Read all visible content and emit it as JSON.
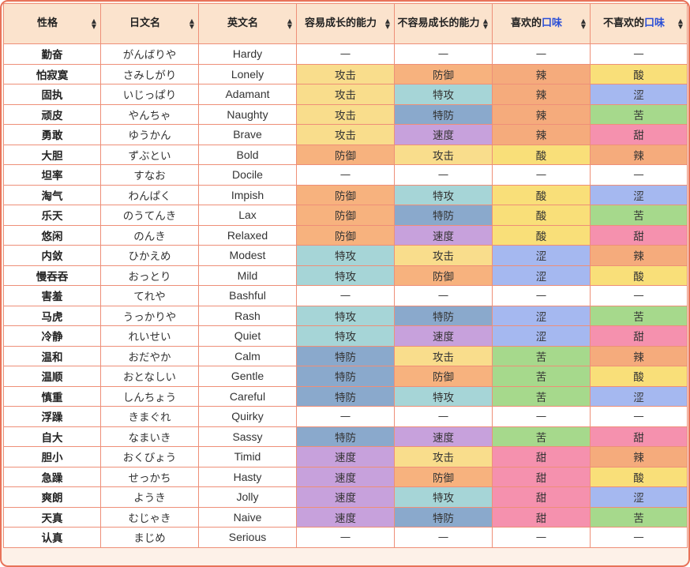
{
  "headers": [
    {
      "text": "性格",
      "pre": "",
      "hl": "",
      "post": ""
    },
    {
      "text": "日文名",
      "pre": "",
      "hl": "",
      "post": ""
    },
    {
      "text": "英文名",
      "pre": "",
      "hl": "",
      "post": ""
    },
    {
      "text": "容易成长的能力",
      "pre": "",
      "hl": "",
      "post": ""
    },
    {
      "text": "不容易成长的能力",
      "pre": "",
      "hl": "",
      "post": ""
    },
    {
      "text": "",
      "pre": "喜欢的",
      "hl": "口味",
      "post": ""
    },
    {
      "text": "",
      "pre": "不喜欢的",
      "hl": "口味",
      "post": ""
    }
  ],
  "stat_colors": {
    "攻击": "#f9dd8c",
    "防御": "#f7b27e",
    "特攻": "#a6d5d7",
    "特防": "#8aa9cc",
    "速度": "#c7a1dc"
  },
  "flavor_colors": {
    "辣": "#f5ab7c",
    "酸": "#f9df79",
    "涩": "#a5b8f0",
    "苦": "#a6d98c",
    "甜": "#f591ae"
  },
  "rows": [
    {
      "nature": "勤奋",
      "jp": "がんばりや",
      "en": "Hardy",
      "up": "—",
      "down": "—",
      "like": "—",
      "dislike": "—"
    },
    {
      "nature": "怕寂寞",
      "jp": "さみしがり",
      "en": "Lonely",
      "up": "攻击",
      "down": "防御",
      "like": "辣",
      "dislike": "酸"
    },
    {
      "nature": "固执",
      "jp": "いじっぱり",
      "en": "Adamant",
      "up": "攻击",
      "down": "特攻",
      "like": "辣",
      "dislike": "涩"
    },
    {
      "nature": "顽皮",
      "jp": "やんちゃ",
      "en": "Naughty",
      "up": "攻击",
      "down": "特防",
      "like": "辣",
      "dislike": "苦"
    },
    {
      "nature": "勇敢",
      "jp": "ゆうかん",
      "en": "Brave",
      "up": "攻击",
      "down": "速度",
      "like": "辣",
      "dislike": "甜"
    },
    {
      "nature": "大胆",
      "jp": "ずぶとい",
      "en": "Bold",
      "up": "防御",
      "down": "攻击",
      "like": "酸",
      "dislike": "辣"
    },
    {
      "nature": "坦率",
      "jp": "すなお",
      "en": "Docile",
      "up": "—",
      "down": "—",
      "like": "—",
      "dislike": "—"
    },
    {
      "nature": "淘气",
      "jp": "わんぱく",
      "en": "Impish",
      "up": "防御",
      "down": "特攻",
      "like": "酸",
      "dislike": "涩"
    },
    {
      "nature": "乐天",
      "jp": "のうてんき",
      "en": "Lax",
      "up": "防御",
      "down": "特防",
      "like": "酸",
      "dislike": "苦"
    },
    {
      "nature": "悠闲",
      "jp": "のんき",
      "en": "Relaxed",
      "up": "防御",
      "down": "速度",
      "like": "酸",
      "dislike": "甜"
    },
    {
      "nature": "内敛",
      "jp": "ひかえめ",
      "en": "Modest",
      "up": "特攻",
      "down": "攻击",
      "like": "涩",
      "dislike": "辣"
    },
    {
      "nature": "慢吞吞",
      "jp": "おっとり",
      "en": "Mild",
      "up": "特攻",
      "down": "防御",
      "like": "涩",
      "dislike": "酸"
    },
    {
      "nature": "害羞",
      "jp": "てれや",
      "en": "Bashful",
      "up": "—",
      "down": "—",
      "like": "—",
      "dislike": "—"
    },
    {
      "nature": "马虎",
      "jp": "うっかりや",
      "en": "Rash",
      "up": "特攻",
      "down": "特防",
      "like": "涩",
      "dislike": "苦"
    },
    {
      "nature": "冷静",
      "jp": "れいせい",
      "en": "Quiet",
      "up": "特攻",
      "down": "速度",
      "like": "涩",
      "dislike": "甜"
    },
    {
      "nature": "温和",
      "jp": "おだやか",
      "en": "Calm",
      "up": "特防",
      "down": "攻击",
      "like": "苦",
      "dislike": "辣"
    },
    {
      "nature": "温顺",
      "jp": "おとなしい",
      "en": "Gentle",
      "up": "特防",
      "down": "防御",
      "like": "苦",
      "dislike": "酸"
    },
    {
      "nature": "慎重",
      "jp": "しんちょう",
      "en": "Careful",
      "up": "特防",
      "down": "特攻",
      "like": "苦",
      "dislike": "涩"
    },
    {
      "nature": "浮躁",
      "jp": "きまぐれ",
      "en": "Quirky",
      "up": "—",
      "down": "—",
      "like": "—",
      "dislike": "—"
    },
    {
      "nature": "自大",
      "jp": "なまいき",
      "en": "Sassy",
      "up": "特防",
      "down": "速度",
      "like": "苦",
      "dislike": "甜"
    },
    {
      "nature": "胆小",
      "jp": "おくびょう",
      "en": "Timid",
      "up": "速度",
      "down": "攻击",
      "like": "甜",
      "dislike": "辣"
    },
    {
      "nature": "急躁",
      "jp": "せっかち",
      "en": "Hasty",
      "up": "速度",
      "down": "防御",
      "like": "甜",
      "dislike": "酸"
    },
    {
      "nature": "爽朗",
      "jp": "ようき",
      "en": "Jolly",
      "up": "速度",
      "down": "特攻",
      "like": "甜",
      "dislike": "涩"
    },
    {
      "nature": "天真",
      "jp": "むじゃき",
      "en": "Naive",
      "up": "速度",
      "down": "特防",
      "like": "甜",
      "dislike": "苦"
    },
    {
      "nature": "认真",
      "jp": "まじめ",
      "en": "Serious",
      "up": "—",
      "down": "—",
      "like": "—",
      "dislike": "—"
    }
  ]
}
